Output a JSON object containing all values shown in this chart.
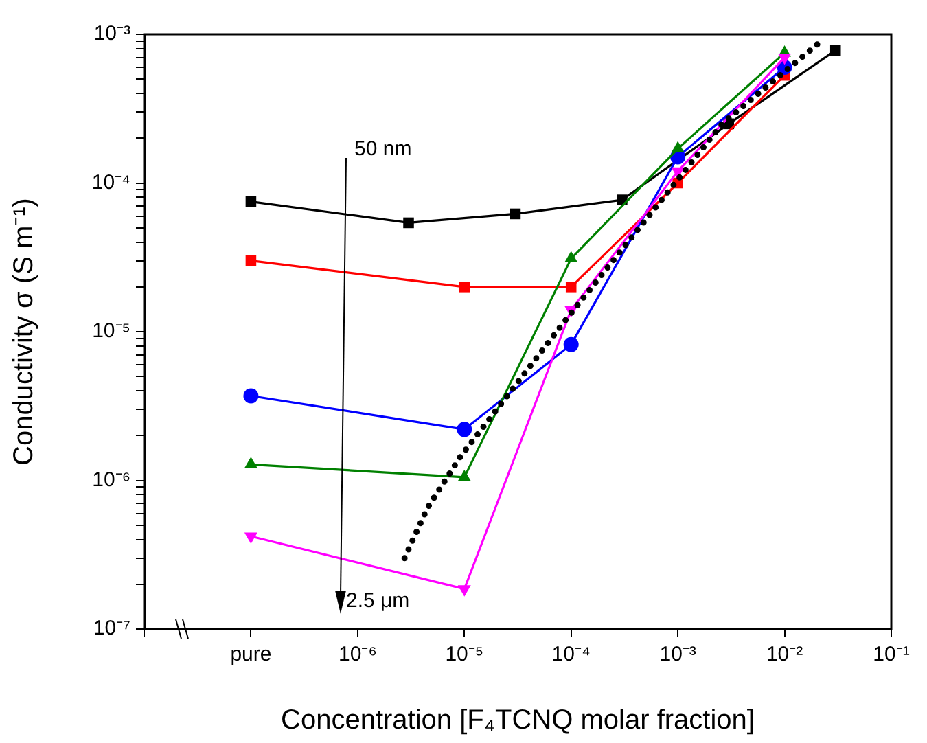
{
  "chart_data": {
    "type": "line",
    "xlabel": "Concentration [F₄TCNQ molar fraction]",
    "ylabel": "Conductivity σ (S m⁻¹)",
    "log": "xy",
    "grid": false,
    "legend": false,
    "xlim": [
      1e-08,
      0.1
    ],
    "xticks": [
      {
        "value": 1e-08,
        "label": null
      },
      {
        "value": 1e-07,
        "label": "pure"
      },
      {
        "value": 1e-06,
        "label": "10⁻⁶"
      },
      {
        "value": 1e-05,
        "label": "10⁻⁵"
      },
      {
        "value": 0.0001,
        "label": "10⁻⁴"
      },
      {
        "value": 0.001,
        "label": "10⁻³"
      },
      {
        "value": 0.01,
        "label": "10⁻²"
      },
      {
        "value": 0.1,
        "label": "10⁻¹"
      }
    ],
    "ylim": [
      1e-07,
      0.001
    ],
    "yticks": [
      {
        "value": 1e-07,
        "label": "10⁻⁷"
      },
      {
        "value": 2e-07,
        "label": null
      },
      {
        "value": 3e-07,
        "label": null
      },
      {
        "value": 4e-07,
        "label": null
      },
      {
        "value": 5e-07,
        "label": null
      },
      {
        "value": 6e-07,
        "label": null
      },
      {
        "value": 7e-07,
        "label": null
      },
      {
        "value": 8e-07,
        "label": null
      },
      {
        "value": 9e-07,
        "label": null
      },
      {
        "value": 1e-06,
        "label": "10⁻⁶"
      },
      {
        "value": 2e-06,
        "label": null
      },
      {
        "value": 3e-06,
        "label": null
      },
      {
        "value": 4e-06,
        "label": null
      },
      {
        "value": 5e-06,
        "label": null
      },
      {
        "value": 6e-06,
        "label": null
      },
      {
        "value": 7e-06,
        "label": null
      },
      {
        "value": 8e-06,
        "label": null
      },
      {
        "value": 9e-06,
        "label": null
      },
      {
        "value": 1e-05,
        "label": "10⁻⁵"
      },
      {
        "value": 2e-05,
        "label": null
      },
      {
        "value": 3e-05,
        "label": null
      },
      {
        "value": 4e-05,
        "label": null
      },
      {
        "value": 5e-05,
        "label": null
      },
      {
        "value": 6e-05,
        "label": null
      },
      {
        "value": 7e-05,
        "label": null
      },
      {
        "value": 8e-05,
        "label": null
      },
      {
        "value": 9e-05,
        "label": null
      },
      {
        "value": 0.0001,
        "label": "10⁻⁴"
      },
      {
        "value": 0.0002,
        "label": null
      },
      {
        "value": 0.0003,
        "label": null
      },
      {
        "value": 0.0004,
        "label": null
      },
      {
        "value": 0.0005,
        "label": null
      },
      {
        "value": 0.0006,
        "label": null
      },
      {
        "value": 0.0007,
        "label": null
      },
      {
        "value": 0.0008,
        "label": null
      },
      {
        "value": 0.0009,
        "label": null
      },
      {
        "value": 0.001,
        "label": "10⁻³"
      }
    ],
    "series": [
      {
        "color": "#000000",
        "marker": "square",
        "x": [
          1e-07,
          3e-06,
          3e-05,
          0.0003,
          0.003,
          0.03
        ],
        "values": [
          7.5e-05,
          5.4e-05,
          6.2e-05,
          7.7e-05,
          0.00025,
          0.00078
        ]
      },
      {
        "color": "#ff0000",
        "marker": "square",
        "x": [
          1e-07,
          1e-05,
          0.0001,
          0.001,
          0.01
        ],
        "values": [
          3e-05,
          2e-05,
          2e-05,
          0.0001,
          0.00053
        ]
      },
      {
        "color": "#0000ff",
        "marker": "circle",
        "x": [
          1e-07,
          1e-05,
          0.0001,
          0.001,
          0.01
        ],
        "values": [
          3.7e-06,
          2.2e-06,
          8.2e-06,
          0.00015,
          0.0006
        ]
      },
      {
        "color": "#008000",
        "marker": "triangle",
        "x": [
          1e-07,
          1e-05,
          0.0001,
          0.001,
          0.01
        ],
        "values": [
          1.28e-06,
          1.05e-06,
          3.1e-05,
          0.00017,
          0.00075
        ]
      },
      {
        "color": "#ff00ff",
        "marker": "triangle-down",
        "x": [
          1e-07,
          1e-05,
          0.0001,
          0.001,
          0.01
        ],
        "values": [
          4.2e-07,
          1.86e-07,
          1.4e-05,
          0.00012,
          0.0007
        ]
      },
      {
        "color": "#000000",
        "marker": "none",
        "line_style": "dotted",
        "x": [
          2.75e-06,
          4.5e-06,
          9.1e-06,
          8.9e-05,
          0.00087,
          0.0026,
          0.022
        ],
        "values": [
          3e-07,
          6.5e-07,
          1.43e-06,
          1.2e-05,
          9.3e-05,
          0.00025,
          0.0009
        ]
      }
    ],
    "annotations": [
      "50 nm",
      "2.5 μm"
    ]
  }
}
